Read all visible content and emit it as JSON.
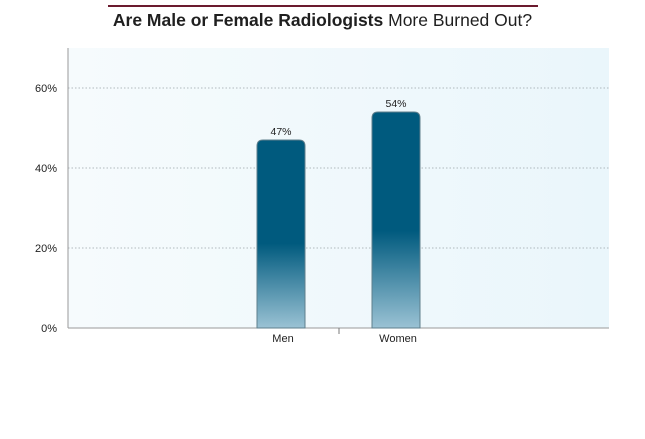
{
  "title": {
    "bold": "Are Male or Female Radiologists",
    "light": "More Burned Out?"
  },
  "colors": {
    "bar_top": "#005a7e",
    "bar_bottom": "#9ac2d4",
    "title_rule": "#6b1a2e",
    "plot_bg": "#eef7fb"
  },
  "chart_data": {
    "type": "bar",
    "title": "Are Male or Female Radiologists More Burned Out?",
    "categories": [
      "Men",
      "Women"
    ],
    "values": [
      47,
      54
    ],
    "data_labels": [
      "47%",
      "54%"
    ],
    "ylim": [
      0,
      70
    ],
    "yticks": [
      0,
      20,
      40,
      60
    ],
    "ytick_labels": [
      "0%",
      "20%",
      "40%",
      "60%"
    ],
    "grid": true,
    "legend": "none"
  }
}
